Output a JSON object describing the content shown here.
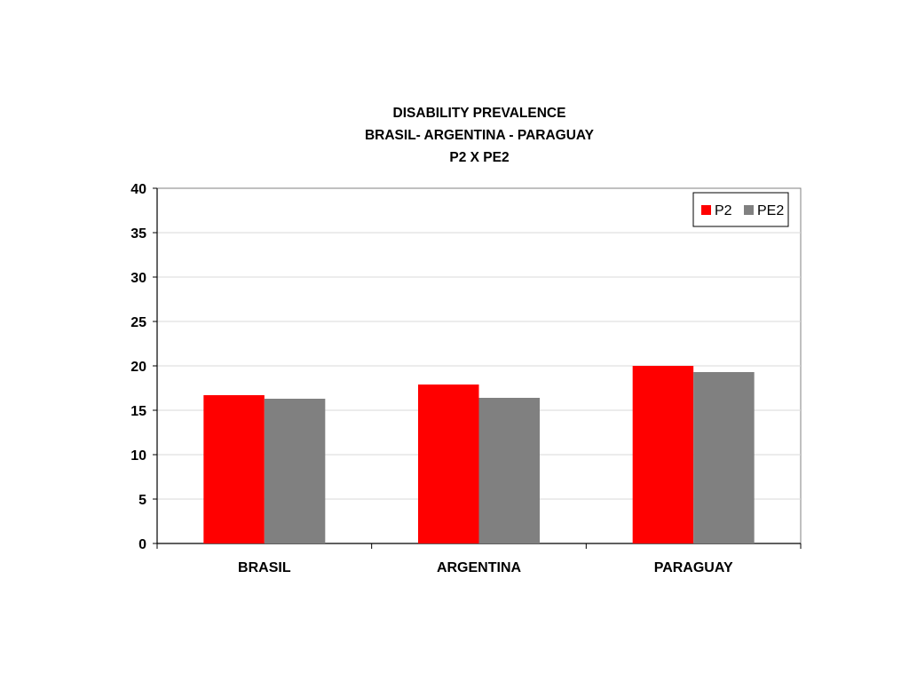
{
  "chart_data": {
    "type": "bar",
    "title": [
      "DISABILITY PREVALENCE",
      "BRASIL- ARGENTINA - PARAGUAY",
      "P2 X PE2"
    ],
    "categories": [
      "BRASIL",
      "ARGENTINA",
      "PARAGUAY"
    ],
    "series": [
      {
        "name": "P2",
        "values": [
          16.7,
          17.9,
          20.0
        ],
        "color": "#ff0000"
      },
      {
        "name": "PE2",
        "values": [
          16.3,
          16.4,
          19.3
        ],
        "color": "#808080"
      }
    ],
    "xlabel": "",
    "ylabel": "",
    "ylim": [
      0,
      40
    ],
    "yticks": [
      0,
      5,
      10,
      15,
      20,
      25,
      30,
      35,
      40
    ],
    "grid": true,
    "legend_position": "top-right"
  }
}
